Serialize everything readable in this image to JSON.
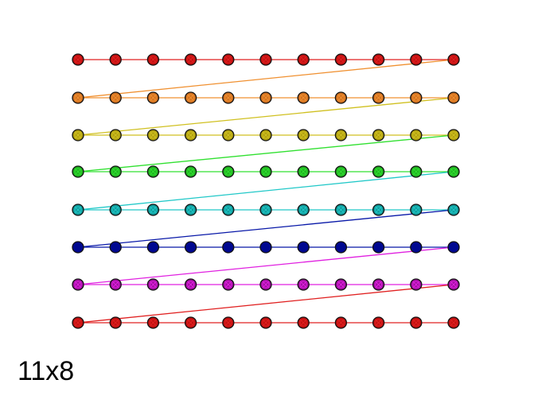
{
  "label": "11x8"
}
